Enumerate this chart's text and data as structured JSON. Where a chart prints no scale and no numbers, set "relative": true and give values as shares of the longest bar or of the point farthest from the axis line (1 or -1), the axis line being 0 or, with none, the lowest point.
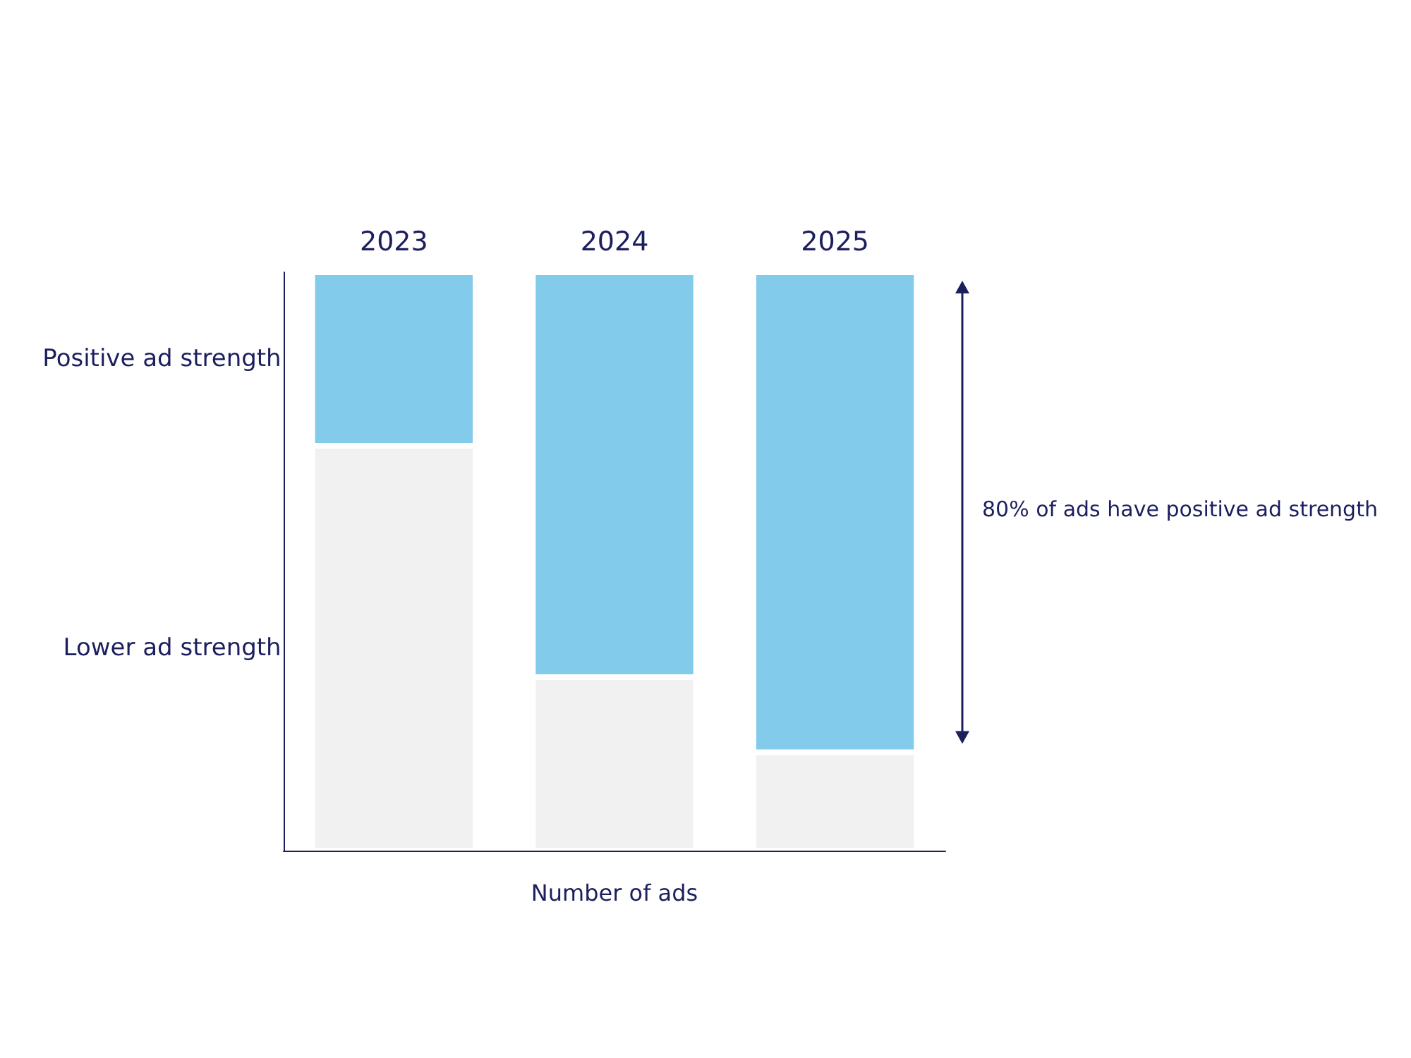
{
  "chart_data": {
    "type": "bar",
    "stacked": true,
    "relative": true,
    "xlabel": "Number of ads",
    "categories": [
      "2023",
      "2024",
      "2025"
    ],
    "series": [
      {
        "name": "Lower ad strength",
        "color": "#f1f1f1",
        "values": [
          0.7,
          0.3,
          0.17
        ]
      },
      {
        "name": "Positive ad strength",
        "color": "#82cbea",
        "values": [
          0.3,
          0.7,
          0.83
        ]
      }
    ],
    "annotations": [
      "80% of ads have positive ad strength"
    ]
  }
}
